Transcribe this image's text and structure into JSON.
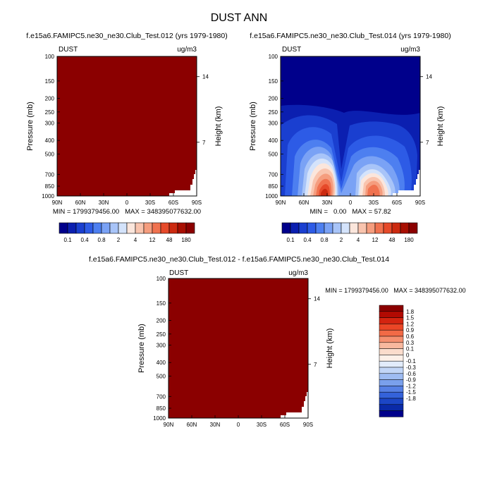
{
  "figure": {
    "title": "DUST ANN"
  },
  "chart_data": [
    {
      "type": "contour",
      "panel": "top-left",
      "title": "f.e15a6.FAMIPC5.ne30_ne30.Club_Test.012 (yrs 1979-1980)",
      "variable_label": "DUST",
      "units_label": "ug/m3",
      "ylabel": "Pressure (mb)",
      "y2label": "Height (km)",
      "x_ticks": [
        "90N",
        "60N",
        "30N",
        "0",
        "30S",
        "60S",
        "90S"
      ],
      "y_ticks": [
        "100",
        "150",
        "200",
        "250",
        "300",
        "400",
        "500",
        "700",
        "850",
        "1000"
      ],
      "y2_ticks": [
        "14",
        "7"
      ],
      "stats_text": "MIN = 1799379456.00   MAX = 348395077632.00",
      "fill_color": "#8b0000",
      "note": "field saturated above top contour level; white gap near surface at 90S"
    },
    {
      "type": "contour",
      "panel": "top-right",
      "title": "f.e15a6.FAMIPC5.ne30_ne30.Club_Test.014 (yrs 1979-1980)",
      "variable_label": "DUST",
      "units_label": "ug/m3",
      "ylabel": "Pressure (mb)",
      "y2label": "Height (km)",
      "x_ticks": [
        "90N",
        "60N",
        "30N",
        "0",
        "30S",
        "60S",
        "90S"
      ],
      "y_ticks": [
        "100",
        "150",
        "200",
        "250",
        "300",
        "400",
        "500",
        "700",
        "850",
        "1000"
      ],
      "y2_ticks": [
        "14",
        "7"
      ],
      "stats_text": "MIN =   0.00   MAX = 57.82",
      "min": 0.0,
      "max": 57.82,
      "features": [
        {
          "name": "northern-subtropical-maximum",
          "lat": 25,
          "pressure": 850
        },
        {
          "name": "southern-subtropical-maximum",
          "lat": -25,
          "pressure": 850
        }
      ]
    },
    {
      "type": "contour",
      "panel": "bottom",
      "title": "f.e15a6.FAMIPC5.ne30_ne30.Club_Test.012 - f.e15a6.FAMIPC5.ne30_ne30.Club_Test.014",
      "variable_label": "DUST",
      "units_label": "ug/m3",
      "ylabel": "Pressure (mb)",
      "y2label": "Height (km)",
      "x_ticks": [
        "90N",
        "60N",
        "30N",
        "0",
        "30S",
        "60S",
        "90S"
      ],
      "y_ticks": [
        "100",
        "150",
        "200",
        "250",
        "300",
        "400",
        "500",
        "700",
        "850",
        "1000"
      ],
      "y2_ticks": [
        "14",
        "7"
      ],
      "stats_text": "MIN = 1799379456.00   MAX = 348395077632.00",
      "fill_color": "#8b0000"
    }
  ],
  "colorbar_top": {
    "labels": [
      "0.1",
      "0.4",
      "0.8",
      "2",
      "4",
      "12",
      "48",
      "180"
    ],
    "colors": [
      "#00008b",
      "#0b1fb0",
      "#1a3fd0",
      "#2d5be6",
      "#4d7ff0",
      "#7aa2f5",
      "#a8c4f8",
      "#d4e3fb",
      "#fbe6dc",
      "#f9c4ae",
      "#f59d7e",
      "#f0724f",
      "#e64a2a",
      "#cc2a10",
      "#a80f02",
      "#8b0000"
    ]
  },
  "colorbar_diff": {
    "labels": [
      "1.8",
      "1.5",
      "1.2",
      "0.9",
      "0.6",
      "0.3",
      "0.1",
      "0",
      "-0.1",
      "-0.3",
      "-0.6",
      "-0.9",
      "-1.2",
      "-1.5",
      "-1.8"
    ],
    "colors": [
      "#8b0000",
      "#b20a02",
      "#d42410",
      "#eb4626",
      "#f26a46",
      "#f59070",
      "#f8b89e",
      "#fbdccc",
      "#fdf0e8",
      "#e2ecfb",
      "#c2d6f7",
      "#9ebcf2",
      "#7aa0ec",
      "#5680e4",
      "#3462da",
      "#1c46c6",
      "#0a2aa8",
      "#00008b"
    ]
  }
}
